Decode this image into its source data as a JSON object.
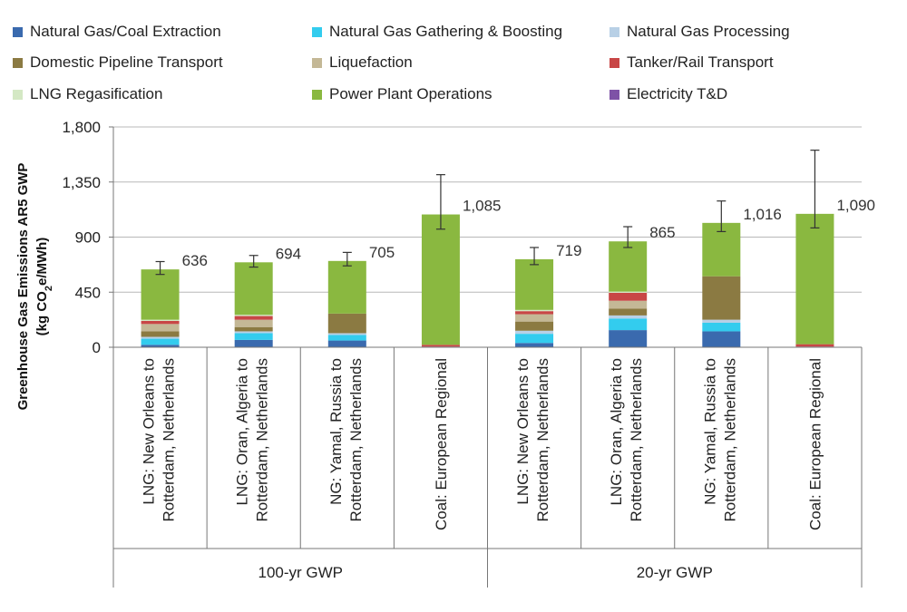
{
  "chart_data": {
    "type": "bar",
    "stacked": true,
    "ylabel": "Greenhouse Gas Emissions AR5 GWP",
    "ylabel_unit_prefix": "(kg CO",
    "ylabel_unit_sub": "2",
    "ylabel_unit_suffix": "e/MWh)",
    "ylim": [
      0,
      1800
    ],
    "yticks": [
      0,
      450,
      900,
      1350,
      1800
    ],
    "ytick_labels": [
      "0",
      "450",
      "900",
      "1,350",
      "1,800"
    ],
    "grid": "horizontal",
    "legend_position": "top",
    "categories": [
      {
        "line1": "LNG: New Orleans to",
        "line2": "Rotterdam, Netherlands"
      },
      {
        "line1": "LNG: Oran, Algeria to",
        "line2": "Rotterdam, Netherlands"
      },
      {
        "line1": "NG: Yamal, Russia to",
        "line2": "Rotterdam, Netherlands"
      },
      {
        "line1": "Coal: European Regional",
        "line2": ""
      },
      {
        "line1": "LNG: New Orleans to",
        "line2": "Rotterdam, Netherlands"
      },
      {
        "line1": "LNG: Oran, Algeria to",
        "line2": "Rotterdam, Netherlands"
      },
      {
        "line1": "NG: Yamal, Russia to",
        "line2": "Rotterdam, Netherlands"
      },
      {
        "line1": "Coal: European Regional",
        "line2": ""
      }
    ],
    "groups": [
      {
        "label": "100-yr GWP",
        "start": 0,
        "end": 3
      },
      {
        "label": "20-yr GWP",
        "start": 4,
        "end": 7
      }
    ],
    "totals": [
      636,
      694,
      705,
      1085,
      719,
      865,
      1016,
      1090
    ],
    "total_labels": [
      "636",
      "694",
      "705",
      "1,085",
      "719",
      "865",
      "1,016",
      "1,090"
    ],
    "error_bars": [
      {
        "low": 595,
        "high": 700
      },
      {
        "low": 655,
        "high": 750
      },
      {
        "low": 665,
        "high": 775
      },
      {
        "low": 965,
        "high": 1410
      },
      {
        "low": 675,
        "high": 815
      },
      {
        "low": 815,
        "high": 985
      },
      {
        "low": 945,
        "high": 1195
      },
      {
        "low": 975,
        "high": 1610
      }
    ],
    "series": [
      {
        "name": "Natural Gas/Coal Extraction",
        "color": "#3a6aae",
        "values": [
          20,
          60,
          55,
          5,
          35,
          140,
          130,
          5
        ]
      },
      {
        "name": "Natural Gas Gathering & Boosting",
        "color": "#33ccee",
        "values": [
          50,
          55,
          45,
          0,
          75,
          95,
          70,
          0
        ]
      },
      {
        "name": "Natural Gas Processing",
        "color": "#b8d0e6",
        "values": [
          15,
          15,
          15,
          0,
          25,
          25,
          25,
          0
        ]
      },
      {
        "name": "Domestic Pipeline Transport",
        "color": "#8b7a42",
        "values": [
          45,
          35,
          160,
          0,
          75,
          55,
          355,
          0
        ]
      },
      {
        "name": "Liquefaction",
        "color": "#c4b896",
        "values": [
          60,
          60,
          0,
          0,
          60,
          65,
          0,
          0
        ]
      },
      {
        "name": "Tanker/Rail Transport",
        "color": "#c84646",
        "values": [
          25,
          30,
          0,
          15,
          25,
          65,
          0,
          20
        ]
      },
      {
        "name": "LNG Regasification",
        "color": "#d4e8c4",
        "values": [
          10,
          10,
          0,
          0,
          10,
          10,
          0,
          0
        ]
      },
      {
        "name": "Power Plant Operations",
        "color": "#8ab840",
        "values": [
          411,
          429,
          430,
          1065,
          414,
          410,
          436,
          1065
        ]
      },
      {
        "name": "Electricity T&D",
        "color": "#7e52a6",
        "values": [
          0,
          0,
          0,
          0,
          0,
          0,
          0,
          0
        ]
      }
    ]
  }
}
